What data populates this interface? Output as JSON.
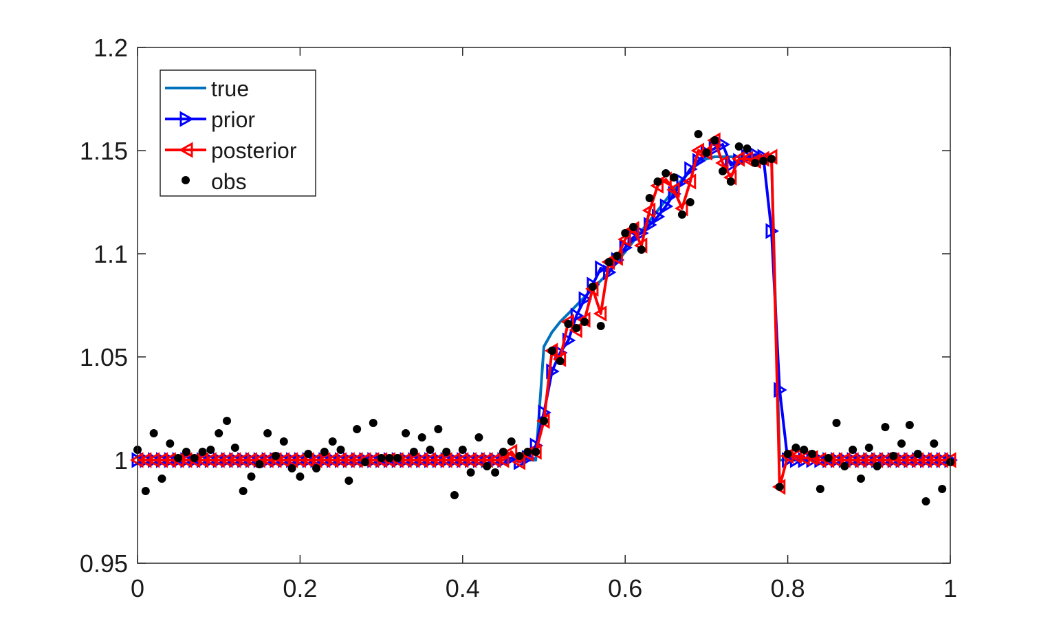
{
  "chart_data": {
    "type": "line",
    "xlim": [
      0,
      1
    ],
    "ylim": [
      0.95,
      1.2
    ],
    "xticks": [
      "0",
      "0.2",
      "0.4",
      "0.6",
      "0.8",
      "1"
    ],
    "yticks": [
      "0.95",
      "1",
      "1.05",
      "1.1",
      "1.15",
      "1.2"
    ],
    "legend_position": "top-left",
    "grid": false,
    "x": [
      0,
      0.01,
      0.02,
      0.03,
      0.04,
      0.05,
      0.06,
      0.07,
      0.08,
      0.09,
      0.1,
      0.11,
      0.12,
      0.13,
      0.14,
      0.15,
      0.16,
      0.17,
      0.18,
      0.19,
      0.2,
      0.21,
      0.22,
      0.23,
      0.24,
      0.25,
      0.26,
      0.27,
      0.28,
      0.29,
      0.3,
      0.31,
      0.32,
      0.33,
      0.34,
      0.35,
      0.36,
      0.37,
      0.38,
      0.39,
      0.4,
      0.41,
      0.42,
      0.43,
      0.44,
      0.45,
      0.46,
      0.47,
      0.48,
      0.49,
      0.5,
      0.51,
      0.52,
      0.53,
      0.54,
      0.55,
      0.56,
      0.57,
      0.58,
      0.59,
      0.6,
      0.61,
      0.62,
      0.63,
      0.64,
      0.65,
      0.66,
      0.67,
      0.68,
      0.69,
      0.7,
      0.71,
      0.72,
      0.73,
      0.74,
      0.75,
      0.76,
      0.77,
      0.78,
      0.79,
      0.8,
      0.81,
      0.82,
      0.83,
      0.84,
      0.85,
      0.86,
      0.87,
      0.88,
      0.89,
      0.9,
      0.91,
      0.92,
      0.93,
      0.94,
      0.95,
      0.96,
      0.97,
      0.98,
      0.99,
      1
    ],
    "series": [
      {
        "name": "true",
        "color": "#0072bd",
        "marker": "none",
        "y": [
          1,
          1,
          1,
          1,
          1,
          1,
          1,
          1,
          1,
          1,
          1,
          1,
          1,
          1,
          1,
          1,
          1,
          1,
          1,
          1,
          1,
          1,
          1,
          1,
          1,
          1,
          1,
          1,
          1,
          1,
          1,
          1,
          1,
          1,
          1,
          1,
          1,
          1,
          1,
          1,
          1,
          1,
          1,
          1,
          1,
          1,
          1,
          1,
          1,
          1,
          1.055,
          1.062,
          1.067,
          1.071,
          1.075,
          1.079,
          1.083,
          1.087,
          1.091,
          1.096,
          1.101,
          1.106,
          1.111,
          1.116,
          1.121,
          1.126,
          1.131,
          1.136,
          1.14,
          1.144,
          1.146,
          1.147,
          1.147,
          1.147,
          1.147,
          1.147,
          1.147,
          1.147,
          1.147,
          1,
          1,
          1,
          1,
          1,
          1,
          1,
          1,
          1,
          1,
          1,
          1,
          1,
          1,
          1,
          1,
          1,
          1,
          1,
          1,
          1,
          1
        ]
      },
      {
        "name": "prior",
        "color": "#0000ff",
        "marker": "triangle-right",
        "y": [
          1,
          1,
          1,
          1,
          1,
          1,
          1,
          1,
          1,
          1,
          1,
          1,
          1,
          1,
          1,
          1,
          1,
          1,
          1,
          1,
          1,
          1,
          1,
          1,
          1,
          1,
          1,
          1,
          1,
          1,
          1,
          1,
          1,
          1,
          1,
          1,
          1,
          1,
          1,
          1,
          1,
          1,
          1,
          1,
          1,
          1,
          1.001,
          0.999,
          1.001,
          1.007,
          1.023,
          1.043,
          1.052,
          1.058,
          1.07,
          1.078,
          1.085,
          1.093,
          1.091,
          1.097,
          1.103,
          1.108,
          1.11,
          1.114,
          1.118,
          1.123,
          1.129,
          1.135,
          1.141,
          1.145,
          1.149,
          1.151,
          1.153,
          1.143,
          1.145,
          1.147,
          1.148,
          1.147,
          1.111,
          1.034,
          1,
          1,
          1,
          1,
          1,
          1,
          1,
          1,
          1,
          1,
          1,
          1,
          1,
          1,
          1,
          1,
          1,
          1,
          1,
          1,
          1
        ]
      },
      {
        "name": "posterior",
        "color": "#ff0000",
        "marker": "triangle-left",
        "y": [
          1,
          1,
          1,
          1,
          1,
          1,
          1,
          1,
          1,
          1,
          1,
          1,
          1,
          1,
          1,
          1,
          1,
          1,
          1,
          1,
          1,
          1,
          1,
          1,
          1,
          1,
          1,
          1,
          1,
          1,
          1,
          1,
          1,
          1,
          1,
          1,
          1,
          1,
          1,
          1,
          1,
          1,
          1,
          1,
          1,
          1,
          1.004,
          0.999,
          1.003,
          1.004,
          1.019,
          1.053,
          1.049,
          1.067,
          1.063,
          1.068,
          1.083,
          1.071,
          1.096,
          1.098,
          1.107,
          1.112,
          1.104,
          1.121,
          1.133,
          1.136,
          1.131,
          1.122,
          1.135,
          1.15,
          1.149,
          1.155,
          1.144,
          1.137,
          1.146,
          1.146,
          1.145,
          1.146,
          1.147,
          0.987,
          1.002,
          1.002,
          1.001,
          1.001,
          1,
          1,
          1,
          1,
          1,
          1,
          1,
          1,
          1,
          1,
          1,
          1,
          1,
          1,
          1,
          1,
          1
        ]
      },
      {
        "name": "obs",
        "color": "#000000",
        "marker": "dot",
        "y": [
          1.005,
          0.985,
          1.013,
          0.991,
          1.008,
          1.001,
          1.004,
          1.001,
          1.004,
          1.005,
          1.013,
          1.019,
          1.006,
          0.985,
          0.992,
          0.998,
          1.013,
          1.002,
          1.009,
          0.996,
          0.992,
          1.003,
          0.996,
          1.004,
          1.009,
          1.005,
          0.99,
          1.015,
          0.999,
          1.018,
          1.001,
          1.001,
          1.001,
          1.013,
          1.004,
          1.011,
          1.005,
          1.015,
          1.004,
          0.983,
          1.005,
          0.994,
          1.011,
          0.997,
          0.994,
          1.004,
          1.009,
          1.002,
          1.004,
          1.004,
          1.019,
          1.053,
          1.048,
          1.066,
          1.064,
          1.067,
          1.084,
          1.065,
          1.096,
          1.099,
          1.11,
          1.113,
          1.102,
          1.127,
          1.135,
          1.139,
          1.137,
          1.119,
          1.125,
          1.158,
          1.149,
          1.155,
          1.14,
          1.135,
          1.152,
          1.151,
          1.144,
          1.145,
          1.146,
          0.987,
          1.003,
          1.006,
          1.005,
          1.003,
          0.986,
          1.001,
          1.018,
          0.997,
          1.005,
          0.991,
          1.006,
          0.997,
          1.016,
          1.002,
          1.008,
          1.017,
          1.003,
          0.98,
          1.008,
          0.986,
          0.999
        ]
      }
    ]
  }
}
